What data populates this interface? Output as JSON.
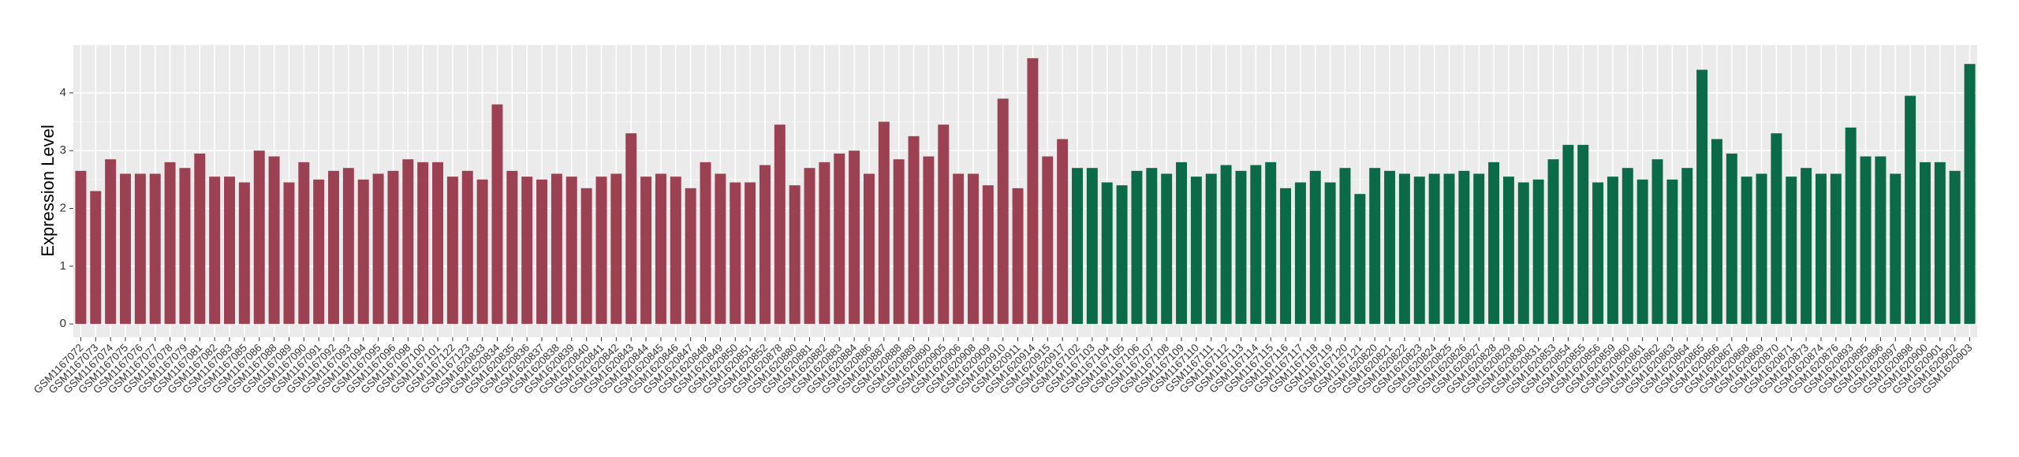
{
  "chart_data": {
    "type": "bar",
    "ylabel": "Expression Level",
    "ylim": [
      -0.23,
      4.83
    ],
    "yticks": [
      0,
      1,
      2,
      3,
      4
    ],
    "grid": true,
    "series": [
      {
        "color": "#9b4152",
        "categories": [
          "GSM1167072",
          "GSM1167073",
          "GSM1167074",
          "GSM1167075",
          "GSM1167076",
          "GSM1167077",
          "GSM1167078",
          "GSM1167079",
          "GSM1167081",
          "GSM1167082",
          "GSM1167083",
          "GSM1167085",
          "GSM1167086",
          "GSM1167088",
          "GSM1167089",
          "GSM1167090",
          "GSM1167091",
          "GSM1167092",
          "GSM1167093",
          "GSM1167094",
          "GSM1167095",
          "GSM1167096",
          "GSM1167098",
          "GSM1167100",
          "GSM1167101",
          "GSM1167122",
          "GSM1167123",
          "GSM1620833",
          "GSM1620834",
          "GSM1620835",
          "GSM1620836",
          "GSM1620837",
          "GSM1620838",
          "GSM1620839",
          "GSM1620840",
          "GSM1620841",
          "GSM1620842",
          "GSM1620843",
          "GSM1620844",
          "GSM1620845",
          "GSM1620846",
          "GSM1620847",
          "GSM1620848",
          "GSM1620849",
          "GSM1620850",
          "GSM1620851",
          "GSM1620852",
          "GSM1620878",
          "GSM1620880",
          "GSM1620881",
          "GSM1620882",
          "GSM1620883",
          "GSM1620884",
          "GSM1620886",
          "GSM1620887",
          "GSM1620888",
          "GSM1620889",
          "GSM1620890",
          "GSM1620905",
          "GSM1620906",
          "GSM1620908",
          "GSM1620909",
          "GSM1620910",
          "GSM1620911",
          "GSM1620914",
          "GSM1620915",
          "GSM1620917"
        ],
        "values": [
          2.65,
          2.3,
          2.85,
          2.6,
          2.6,
          2.6,
          2.8,
          2.7,
          2.95,
          2.55,
          2.55,
          2.45,
          3.0,
          2.9,
          2.45,
          2.8,
          2.5,
          2.65,
          2.7,
          2.5,
          2.6,
          2.65,
          2.85,
          2.8,
          2.8,
          2.55,
          2.65,
          2.5,
          3.8,
          2.65,
          2.55,
          2.5,
          2.6,
          2.55,
          2.35,
          2.55,
          2.6,
          3.3,
          2.55,
          2.6,
          2.55,
          2.35,
          2.8,
          2.6,
          2.45,
          2.45,
          2.75,
          3.45,
          2.4,
          2.7,
          2.8,
          2.95,
          3.0,
          2.6,
          3.5,
          2.85,
          3.25,
          2.9,
          3.45,
          2.6,
          2.6,
          2.4,
          3.9,
          2.35,
          4.6,
          2.9,
          3.2
        ]
      },
      {
        "color": "#0b6a47",
        "categories": [
          "GSM1167102",
          "GSM1167103",
          "GSM1167104",
          "GSM1167105",
          "GSM1167106",
          "GSM1167107",
          "GSM1167108",
          "GSM1167109",
          "GSM1167110",
          "GSM1167111",
          "GSM1167112",
          "GSM1167113",
          "GSM1167114",
          "GSM1167115",
          "GSM1167116",
          "GSM1167117",
          "GSM1167118",
          "GSM1167119",
          "GSM1167120",
          "GSM1167121",
          "GSM1620820",
          "GSM1620821",
          "GSM1620822",
          "GSM1620823",
          "GSM1620824",
          "GSM1620825",
          "GSM1620826",
          "GSM1620827",
          "GSM1620828",
          "GSM1620829",
          "GSM1620830",
          "GSM1620831",
          "GSM1620853",
          "GSM1620854",
          "GSM1620855",
          "GSM1620856",
          "GSM1620859",
          "GSM1620860",
          "GSM1620861",
          "GSM1620862",
          "GSM1620863",
          "GSM1620864",
          "GSM1620865",
          "GSM1620866",
          "GSM1620867",
          "GSM1620868",
          "GSM1620869",
          "GSM1620870",
          "GSM1620871",
          "GSM1620873",
          "GSM1620874",
          "GSM1620876",
          "GSM1620893",
          "GSM1620895",
          "GSM1620896",
          "GSM1620897",
          "GSM1620898",
          "GSM1620900",
          "GSM1620901",
          "GSM1620902",
          "GSM1620903"
        ],
        "values": [
          2.7,
          2.7,
          2.45,
          2.4,
          2.65,
          2.7,
          2.6,
          2.8,
          2.55,
          2.6,
          2.75,
          2.65,
          2.75,
          2.8,
          2.35,
          2.45,
          2.65,
          2.45,
          2.7,
          2.25,
          2.7,
          2.65,
          2.6,
          2.55,
          2.6,
          2.6,
          2.65,
          2.6,
          2.8,
          2.55,
          2.45,
          2.5,
          2.85,
          3.1,
          3.1,
          2.45,
          2.55,
          2.7,
          2.5,
          2.85,
          2.5,
          2.7,
          4.4,
          3.2,
          2.95,
          2.55,
          2.6,
          3.3,
          2.55,
          2.7,
          2.6,
          2.6,
          3.4,
          2.9,
          2.9,
          2.6,
          3.95,
          2.8,
          2.8,
          2.65,
          4.5
        ]
      }
    ]
  }
}
